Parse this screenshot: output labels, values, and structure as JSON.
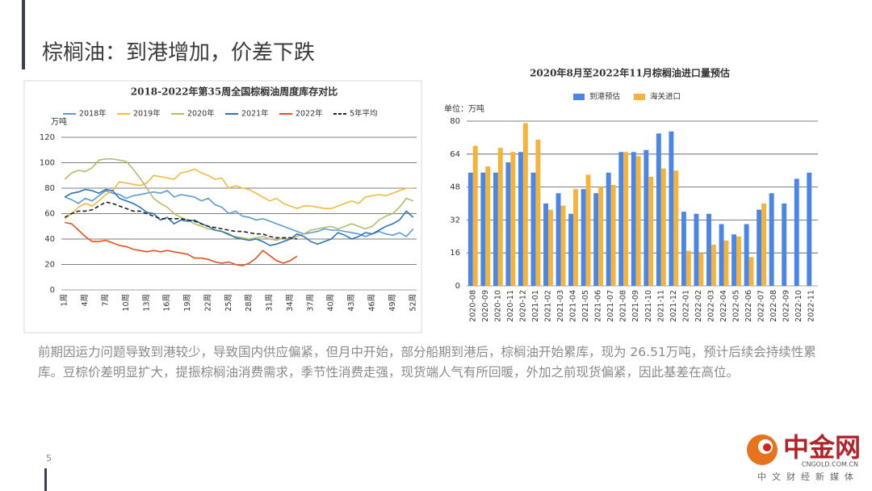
{
  "slide_title": "棕榈油：到港增加，价差下跌",
  "body": "前期因运力问题导致到港较少，导致国内供应偏紧，但月中开始，部分船期到港后，棕榈油开始累库，现为 26.51万吨，预计后续会持续性累库。豆棕价差明显扩大，提振棕榈油消费需求，季节性消费走强，现货端人气有所回暖，外加之前现货偏紧，因此基差在高位。",
  "page_number": "5",
  "logo": {
    "name": "中金网",
    "url": "CNGOLD.COM.CN",
    "slogan": "中文财经新媒体"
  },
  "chart_data": [
    {
      "type": "line",
      "title": "2018-2022年第35周全国棕榈油周度库存对比",
      "unit": "万吨",
      "categories": [
        "1周",
        null,
        null,
        "4周",
        null,
        null,
        "7周",
        null,
        null,
        "10周",
        null,
        null,
        "13周",
        null,
        null,
        "16周",
        null,
        null,
        "19周",
        null,
        null,
        "22周",
        null,
        null,
        "25周",
        null,
        null,
        "28周",
        null,
        null,
        "31周",
        null,
        null,
        "34周",
        null,
        null,
        "37周",
        null,
        null,
        "40周",
        null,
        null,
        "43周",
        null,
        null,
        "46周",
        null,
        null,
        "49周",
        null,
        null,
        "52周"
      ],
      "ylim": [
        0,
        120
      ],
      "yticks": [
        0,
        20,
        40,
        60,
        80,
        100,
        120
      ],
      "grid": true,
      "series": [
        {
          "name": "2018年",
          "color": "#5b9bd5",
          "values": [
            73,
            71,
            68,
            72,
            70,
            74,
            78,
            76,
            75,
            72,
            74,
            75,
            76,
            77,
            76,
            78,
            73,
            75,
            74,
            73,
            70,
            72,
            67,
            65,
            60,
            62,
            58,
            57,
            55,
            56,
            54,
            52,
            50,
            48,
            46,
            44,
            45,
            46,
            48,
            47,
            47,
            46,
            45,
            44,
            42,
            44,
            46,
            44,
            43,
            45,
            42,
            48
          ]
        },
        {
          "name": "2019年",
          "color": "#f4b942",
          "values": [
            56,
            60,
            65,
            68,
            66,
            70,
            75,
            78,
            85,
            84,
            83,
            82,
            84,
            90,
            89,
            88,
            87,
            92,
            93,
            95,
            92,
            90,
            87,
            88,
            80,
            82,
            80,
            79,
            76,
            73,
            70,
            72,
            68,
            66,
            64,
            66,
            66,
            65,
            64,
            64,
            66,
            68,
            70,
            68,
            73,
            74,
            75,
            74,
            76,
            78,
            80,
            80
          ]
        },
        {
          "name": "2020年",
          "color": "#b5bd6a",
          "values": [
            87,
            92,
            94,
            93,
            96,
            102,
            103,
            103,
            102,
            101,
            95,
            88,
            80,
            72,
            68,
            65,
            60,
            57,
            55,
            52,
            50,
            48,
            47,
            46,
            43,
            42,
            41,
            40,
            41,
            42,
            40,
            39,
            41,
            40,
            42,
            44,
            47,
            48,
            49,
            50,
            48,
            50,
            52,
            50,
            48,
            50,
            55,
            58,
            60,
            65,
            72,
            70
          ]
        },
        {
          "name": "2021年",
          "color": "#2e75b6",
          "values": [
            73,
            76,
            77,
            79,
            78,
            76,
            79,
            78,
            72,
            70,
            68,
            65,
            61,
            60,
            55,
            57,
            52,
            55,
            54,
            55,
            52,
            50,
            47,
            46,
            44,
            41,
            40,
            39,
            40,
            38,
            35,
            36,
            38,
            40,
            44,
            42,
            38,
            36,
            38,
            40,
            45,
            43,
            40,
            42,
            45,
            44,
            47,
            50,
            52,
            55,
            62,
            57
          ]
        },
        {
          "name": "2022年",
          "color": "#e2501b",
          "values": [
            53,
            52,
            47,
            42,
            38,
            38,
            39,
            37,
            35,
            34,
            32,
            31,
            30,
            31,
            30,
            31,
            30,
            29,
            28,
            25,
            25,
            24,
            22,
            21,
            22,
            20,
            19,
            21,
            25,
            31,
            27,
            23,
            21,
            23,
            26.51,
            null,
            null,
            null,
            null,
            null,
            null,
            null,
            null,
            null,
            null,
            null,
            null,
            null,
            null,
            null,
            null,
            null
          ]
        },
        {
          "name": "5年平均",
          "color": "#222222",
          "linestyle": "dashed",
          "values": [
            57,
            60,
            62,
            62,
            63,
            66,
            69,
            68,
            66,
            64,
            62,
            62,
            60,
            58,
            56,
            56,
            56,
            56,
            55,
            54,
            52,
            50,
            49,
            48,
            47,
            46,
            46,
            45,
            44,
            44,
            42,
            41,
            41,
            41,
            40,
            null,
            null,
            null,
            null,
            null,
            null,
            null,
            null,
            null,
            null,
            null,
            null,
            null,
            null,
            null,
            null,
            null
          ]
        }
      ]
    },
    {
      "type": "bar",
      "title": "2020年8月至2022年11月棕榈油进口量预估",
      "unit": "单位：万吨",
      "categories": [
        "2020-08",
        "2020-09",
        "2020-10",
        "2020-11",
        "2020-12",
        "2021-01",
        "2021-02",
        "2021-03",
        "2021-04",
        "2021-05",
        "2021-06",
        "2021-07",
        "2021-08",
        "2021-09",
        "2021-10",
        "2021-11",
        "2021-12",
        "2022-01",
        "2022-02",
        "2022-03",
        "2022-04",
        "2022-05",
        "2022-06",
        "2022-07",
        "2022-08",
        "2022-09",
        "2022-10",
        "2022-11"
      ],
      "ylim": [
        0,
        80
      ],
      "yticks": [
        0,
        16,
        32,
        48,
        64,
        80
      ],
      "grid": true,
      "series": [
        {
          "name": "到港预估",
          "color": "#4a86e8",
          "values": [
            55,
            55,
            55,
            60,
            65,
            55,
            40,
            45,
            35,
            47,
            45,
            55,
            65,
            65,
            66,
            74,
            75,
            36,
            35,
            35,
            30,
            25,
            30,
            37,
            45,
            40,
            52,
            55
          ]
        },
        {
          "name": "海关进口",
          "color": "#f6b33a",
          "values": [
            68,
            58,
            67,
            65,
            79,
            71,
            37,
            39,
            47,
            54,
            48,
            49,
            65,
            63,
            53,
            57,
            56,
            17,
            16,
            20,
            22,
            24,
            14,
            40,
            null,
            null,
            null,
            null
          ]
        }
      ]
    }
  ]
}
